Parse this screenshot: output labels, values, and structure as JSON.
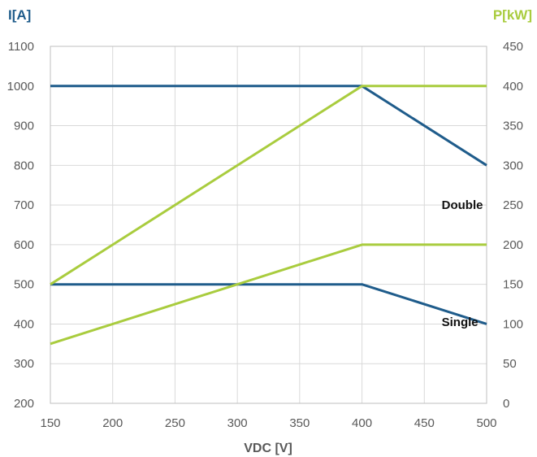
{
  "chart_data": {
    "type": "line",
    "xlabel": "VDC [V]",
    "ylabel_left": "I[A]",
    "ylabel_right": "P[kW]",
    "x_ticks": [
      150,
      200,
      250,
      300,
      350,
      400,
      450,
      500
    ],
    "y_left_ticks": [
      200,
      300,
      400,
      500,
      600,
      700,
      800,
      900,
      1000,
      1100
    ],
    "y_right_ticks": [
      0,
      50,
      100,
      150,
      200,
      250,
      300,
      350,
      400,
      450
    ],
    "xlim": [
      150,
      500
    ],
    "ylim_left": [
      200,
      1100
    ],
    "ylim_right": [
      0,
      450
    ],
    "grid": true,
    "colors": {
      "current": "#1f5c8b",
      "power": "#a9cc3e"
    },
    "series": [
      {
        "axis": "left",
        "color_key": "current",
        "x": [
          150,
          400,
          500
        ],
        "y": [
          1000,
          1000,
          800
        ]
      },
      {
        "axis": "left",
        "color_key": "current",
        "x": [
          150,
          400,
          500
        ],
        "y": [
          500,
          500,
          400
        ]
      },
      {
        "axis": "right",
        "color_key": "power",
        "x": [
          150,
          400,
          500
        ],
        "y": [
          150,
          400,
          400
        ]
      },
      {
        "axis": "right",
        "color_key": "power",
        "x": [
          150,
          400,
          500
        ],
        "y": [
          75,
          200,
          200
        ]
      }
    ],
    "annotations": [
      {
        "text": "Double",
        "x": 460,
        "y_left": 690
      },
      {
        "text": "Single",
        "x": 460,
        "y_left": 395
      }
    ]
  }
}
